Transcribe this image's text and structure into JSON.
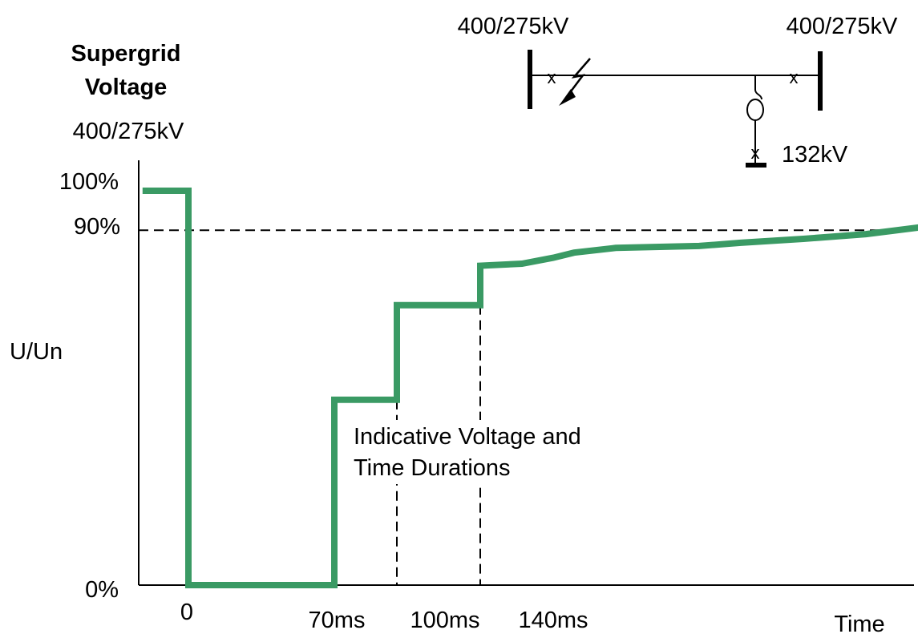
{
  "chart_data": {
    "type": "line",
    "title_lines": [
      "Supergrid",
      "Voltage"
    ],
    "subtitle": "400/275kV",
    "ylabel": "U/Un",
    "xlabel": "Time",
    "y_ticks": [
      "100%",
      "90%",
      "0%"
    ],
    "x_ticks": [
      "0",
      "70ms",
      "100ms",
      "140ms"
    ],
    "threshold_value": 90,
    "annotation_lines": [
      "Indicative Voltage and",
      "Time Durations"
    ],
    "series": [
      {
        "color": "#3a9a64",
        "points": [
          [
            -22,
            100
          ],
          [
            0,
            100
          ],
          [
            0,
            0
          ],
          [
            70,
            0
          ],
          [
            70,
            47
          ],
          [
            100,
            47
          ],
          [
            100,
            71
          ],
          [
            140,
            71
          ],
          [
            140,
            81
          ],
          [
            160,
            81.5
          ],
          [
            175,
            83
          ],
          [
            185,
            84.3
          ],
          [
            205,
            85.5
          ],
          [
            245,
            86
          ],
          [
            265,
            86.8
          ],
          [
            295,
            87.8
          ],
          [
            325,
            89
          ],
          [
            355,
            91
          ],
          [
            360,
            91.5
          ]
        ]
      }
    ],
    "grid": false,
    "dashed_verticals": [
      100,
      140
    ]
  },
  "network_diagram": {
    "left_bus_label": "400/275kV",
    "right_bus_label": "400/275kV",
    "tap_label": "132kV"
  }
}
